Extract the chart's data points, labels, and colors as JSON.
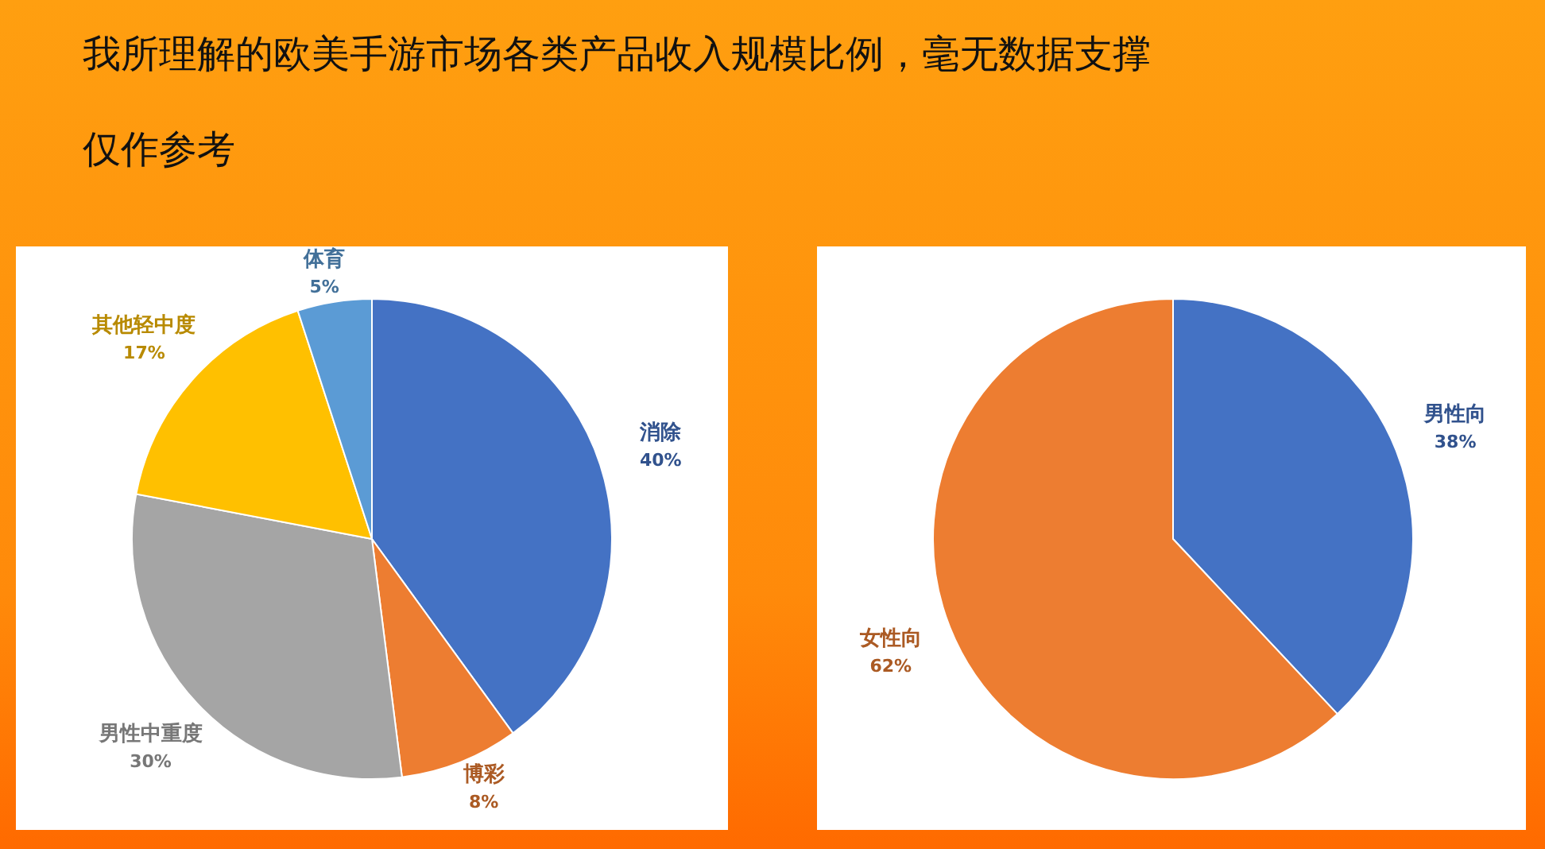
{
  "chart_data": [
    {
      "type": "pie",
      "title": "我所理解的欧美手游市场各类产品收入规模比例，毫无数据支撑",
      "subtitle": "仅作参考",
      "categories": [
        "消除",
        "博彩",
        "男性中重度",
        "其他轻中度",
        "体育"
      ],
      "values": [
        40,
        8,
        30,
        17,
        5
      ],
      "colors": [
        "#4472c4",
        "#ed7d31",
        "#a5a5a5",
        "#ffc000",
        "#5b9bd5"
      ],
      "value_labels": [
        "40%",
        "8%",
        "30%",
        "17%",
        "5%"
      ]
    },
    {
      "type": "pie",
      "categories": [
        "男性向",
        "女性向"
      ],
      "values": [
        38,
        62
      ],
      "colors": [
        "#4472c4",
        "#ed7d31"
      ],
      "value_labels": [
        "38%",
        "62%"
      ]
    }
  ]
}
